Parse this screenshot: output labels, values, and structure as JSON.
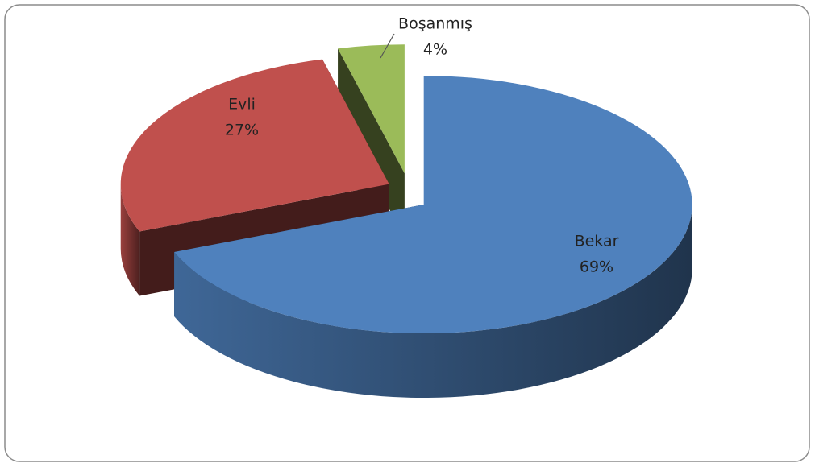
{
  "chart_data": {
    "type": "pie3d",
    "categories": [
      "Bekar",
      "Evli",
      "Boşanmış"
    ],
    "values": [
      69,
      27,
      4
    ],
    "value_labels": [
      "69%",
      "27%",
      "4%"
    ],
    "colors": [
      "#4f81bd",
      "#c0504d",
      "#9bbb59"
    ]
  }
}
